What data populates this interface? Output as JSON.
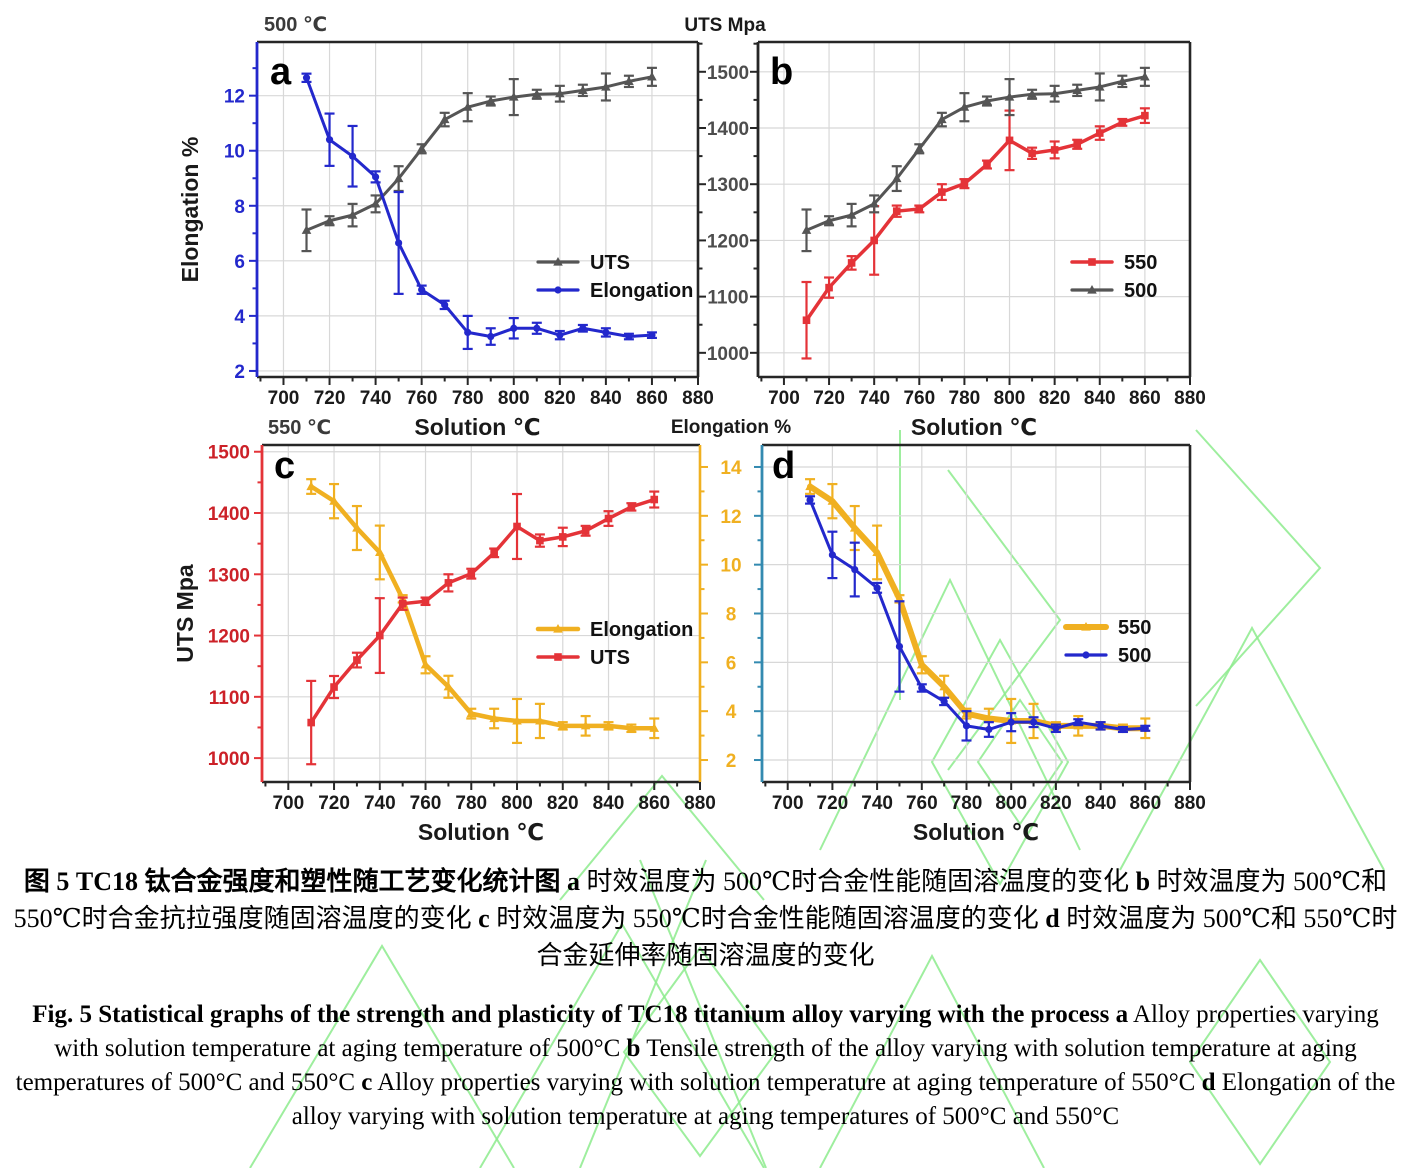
{
  "figure": {
    "captions": {
      "zh": [
        {
          "t": "图  5 TC18 钛合金强度和塑性随工艺变化统计图  ",
          "b": true
        },
        {
          "t": "a",
          "b": true
        },
        {
          "t": " 时效温度为 500℃时合金性能随固溶温度的变化 ",
          "b": false
        },
        {
          "t": "b",
          "b": true
        },
        {
          "t": " 时效温度为 500℃和 550℃时合金抗拉强度随固溶温度的变化 ",
          "b": false
        },
        {
          "t": "c",
          "b": true
        },
        {
          "t": " 时效温度为 550℃时合金性能随固溶温度的变化 ",
          "b": false
        },
        {
          "t": "d",
          "b": true
        },
        {
          "t": " 时效温度为 500℃和 550℃时合金延伸率随固溶温度的变化",
          "b": false
        }
      ],
      "en": [
        {
          "t": "Fig. 5 Statistical graphs of the strength and plasticity of TC18 titanium alloy varying with the process ",
          "b": true
        },
        {
          "t": "a",
          "b": true
        },
        {
          "t": " Alloy properties varying with solution temperature at aging temperature of 500°C ",
          "b": false
        },
        {
          "t": "b",
          "b": true
        },
        {
          "t": " Tensile strength of the alloy varying with solution temperature at aging temperatures of 500°C and 550°C ",
          "b": false
        },
        {
          "t": "c",
          "b": true
        },
        {
          "t": " Alloy properties varying with solution temperature at aging temperature of 550°C ",
          "b": false
        },
        {
          "t": "d",
          "b": true
        },
        {
          "t": " Elongation of the alloy varying with solution temperature at aging temperatures of 500°C and 550°C",
          "b": false
        }
      ]
    }
  },
  "palette": {
    "blue": "#2328cc",
    "gray": "#555555",
    "red": "#e43338",
    "yellow": "#f0b021",
    "teal": "#338ab0",
    "frame": "#262626",
    "grid": "#d8d8d8",
    "label_dark": "#1a1a1a",
    "title_gray": "#3a3a3a",
    "uts_label": "#4d4d4d",
    "red_label": "#cc2128",
    "watermark": "#8deb8d"
  },
  "chart_data": {
    "type": "line",
    "x_label": "Solution ℃",
    "x": [
      710,
      720,
      730,
      740,
      750,
      760,
      770,
      780,
      790,
      800,
      810,
      820,
      830,
      840,
      850,
      860
    ],
    "x_ticks": [
      700,
      720,
      740,
      760,
      780,
      800,
      820,
      840,
      860,
      880
    ],
    "x_minor_ticks": [
      690,
      710,
      730,
      750,
      770,
      790,
      810,
      830,
      850,
      870
    ],
    "xlim": [
      688.5,
      880
    ],
    "datasets": {
      "uts_500": {
        "label": "500",
        "unit": "Mpa",
        "y": [
          1218,
          1235,
          1245,
          1265,
          1310,
          1363,
          1415,
          1437,
          1448,
          1455,
          1460,
          1461,
          1467,
          1473,
          1483,
          1491
        ],
        "err": [
          37,
          8,
          20,
          15,
          22,
          8,
          12,
          25,
          8,
          32,
          8,
          14,
          10,
          24,
          10,
          16
        ]
      },
      "uts_550": {
        "label": "550",
        "unit": "Mpa",
        "y": [
          1058,
          1116,
          1160,
          1200,
          1252,
          1256,
          1286,
          1301,
          1335,
          1378,
          1355,
          1361,
          1371,
          1391,
          1410,
          1422
        ],
        "err": [
          68,
          18,
          12,
          61,
          10,
          6,
          14,
          8,
          7,
          53,
          10,
          15,
          8,
          12,
          6,
          13
        ]
      },
      "elong_500": {
        "label": "500",
        "unit": "%",
        "y": [
          12.65,
          10.4,
          9.8,
          9.05,
          6.65,
          4.95,
          4.4,
          3.4,
          3.25,
          3.55,
          3.55,
          3.3,
          3.55,
          3.4,
          3.25,
          3.3
        ],
        "err": [
          0.15,
          0.95,
          1.1,
          0.2,
          1.85,
          0.15,
          0.15,
          0.6,
          0.3,
          0.37,
          0.2,
          0.15,
          0.12,
          0.15,
          0.1,
          0.1
        ]
      },
      "elong_550": {
        "label": "550",
        "unit": "%",
        "y": [
          13.2,
          12.6,
          11.5,
          10.5,
          8.6,
          5.9,
          5.0,
          3.9,
          3.7,
          3.6,
          3.6,
          3.4,
          3.4,
          3.4,
          3.3,
          3.3
        ],
        "err": [
          0.3,
          0.7,
          0.9,
          1.1,
          0.15,
          0.35,
          0.45,
          0.2,
          0.4,
          0.9,
          0.7,
          0.15,
          0.4,
          0.15,
          0.15,
          0.4
        ]
      }
    },
    "axis_kinds": {
      "elong": {
        "majors": [
          2,
          4,
          6,
          8,
          10,
          12,
          14
        ],
        "minors": [
          3,
          5,
          7,
          9,
          11,
          13
        ]
      },
      "uts": {
        "majors": [
          1000,
          1100,
          1200,
          1300,
          1400,
          1500
        ],
        "minors": [
          950,
          1050,
          1150,
          1250,
          1350,
          1450,
          1550
        ]
      }
    },
    "panels": [
      {
        "id": "a",
        "letter": "a",
        "corner_title": "500 ℃",
        "gap_title": "UTS Mpa",
        "x_label": "Solution ℃",
        "left_axis": {
          "kind": "elong",
          "range": [
            1.78,
            13.95
          ],
          "color_key": "blue",
          "labels": true,
          "label_color_key": "blue",
          "title": "Elongation %"
        },
        "right_axis": {
          "kind": "uts",
          "range": [
            957,
            1553
          ],
          "color_key": "frame",
          "gap_labels": true,
          "label_color_key": "uts_label"
        },
        "grid_y_axis": "left",
        "series": [
          {
            "dataset": "uts_500",
            "label": "UTS",
            "color_key": "gray",
            "marker": "triangle",
            "width": 3,
            "axis": "right"
          },
          {
            "dataset": "elong_500",
            "label": "Elongation",
            "color_key": "blue",
            "marker": "circle",
            "width": 3,
            "axis": "left"
          }
        ]
      },
      {
        "id": "b",
        "letter": "b",
        "x_label": "Solution ℃",
        "left_axis": {
          "kind": "uts",
          "range": [
            957,
            1553
          ],
          "color_key": "frame",
          "labels": false
        },
        "right_axis": {
          "plain": true
        },
        "grid_y_axis": "left",
        "series": [
          {
            "dataset": "uts_550",
            "label": "550",
            "color_key": "red",
            "marker": "square",
            "width": 3.5,
            "axis": "left"
          },
          {
            "dataset": "uts_500",
            "label": "500",
            "color_key": "gray",
            "marker": "triangle",
            "width": 3,
            "axis": "left"
          }
        ]
      },
      {
        "id": "c",
        "letter": "c",
        "corner_title": "550 ℃",
        "gap_title": "Elongation %",
        "x_label": "Solution ℃",
        "left_axis": {
          "kind": "uts",
          "range": [
            961,
            1511
          ],
          "color_key": "red",
          "labels": true,
          "label_color_key": "red_label",
          "title": "UTS Mpa"
        },
        "right_axis": {
          "kind": "elong",
          "range": [
            1.1,
            14.9
          ],
          "color_key": "yellow",
          "gap_labels": true,
          "label_color_key": "yellow"
        },
        "grid_y_axis": "left",
        "series": [
          {
            "dataset": "elong_550",
            "label": "Elongation",
            "color_key": "yellow",
            "marker": "triangle",
            "width": 4.5,
            "axis": "right"
          },
          {
            "dataset": "uts_550",
            "label": "UTS",
            "color_key": "red",
            "marker": "square",
            "width": 3.5,
            "axis": "left"
          }
        ]
      },
      {
        "id": "d",
        "letter": "d",
        "x_label": "Solution ℃",
        "left_axis": {
          "kind": "elong",
          "range": [
            1.1,
            14.9
          ],
          "color_key": "teal",
          "labels": false
        },
        "right_axis": {
          "plain": true
        },
        "grid_y_axis": "left",
        "series": [
          {
            "dataset": "elong_550",
            "label": "550",
            "color_key": "yellow",
            "marker": "triangle",
            "width": 6,
            "axis": "left"
          },
          {
            "dataset": "elong_500",
            "label": "500",
            "color_key": "blue",
            "marker": "circle",
            "width": 3,
            "axis": "left"
          }
        ]
      }
    ]
  }
}
